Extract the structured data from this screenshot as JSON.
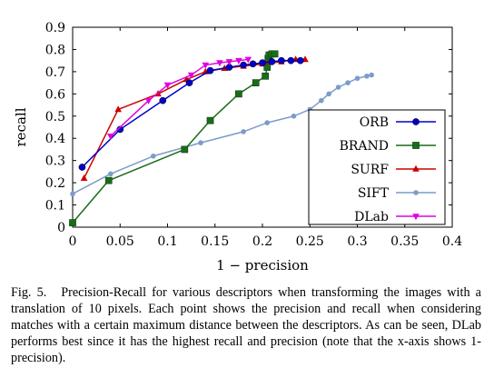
{
  "chart_data": {
    "type": "line",
    "xlabel": "1 − precision",
    "ylabel": "recall",
    "xlim": [
      0,
      0.4
    ],
    "ylim": [
      0,
      0.9
    ],
    "x_ticks": [
      "0",
      "0.05",
      "0.1",
      "0.15",
      "0.2",
      "0.25",
      "0.3",
      "0.35",
      "0.4"
    ],
    "y_ticks": [
      "0",
      "0.1",
      "0.2",
      "0.3",
      "0.4",
      "0.5",
      "0.6",
      "0.7",
      "0.8",
      "0.9"
    ],
    "grid": false,
    "legend_position": "bottom-right",
    "series": [
      {
        "name": "ORB",
        "color": "#0000cc",
        "marker": "circle",
        "points": [
          [
            0.01,
            0.27
          ],
          [
            0.05,
            0.44
          ],
          [
            0.095,
            0.57
          ],
          [
            0.123,
            0.65
          ],
          [
            0.145,
            0.705
          ],
          [
            0.165,
            0.72
          ],
          [
            0.18,
            0.73
          ],
          [
            0.19,
            0.735
          ],
          [
            0.2,
            0.74
          ],
          [
            0.21,
            0.745
          ],
          [
            0.22,
            0.75
          ],
          [
            0.23,
            0.75
          ],
          [
            0.24,
            0.75
          ]
        ]
      },
      {
        "name": "BRAND",
        "color": "#1a6b1a",
        "marker": "square",
        "points": [
          [
            0.0,
            0.02
          ],
          [
            0.038,
            0.21
          ],
          [
            0.118,
            0.35
          ],
          [
            0.145,
            0.48
          ],
          [
            0.175,
            0.6
          ],
          [
            0.193,
            0.65
          ],
          [
            0.203,
            0.68
          ],
          [
            0.205,
            0.72
          ],
          [
            0.206,
            0.76
          ],
          [
            0.207,
            0.775
          ],
          [
            0.21,
            0.78
          ],
          [
            0.213,
            0.78
          ]
        ]
      },
      {
        "name": "SURF",
        "color": "#cc0000",
        "marker": "triangle",
        "points": [
          [
            0.012,
            0.22
          ],
          [
            0.048,
            0.53
          ],
          [
            0.09,
            0.6
          ],
          [
            0.12,
            0.665
          ],
          [
            0.14,
            0.7
          ],
          [
            0.16,
            0.715
          ],
          [
            0.18,
            0.725
          ],
          [
            0.2,
            0.735
          ],
          [
            0.22,
            0.745
          ],
          [
            0.235,
            0.755
          ],
          [
            0.245,
            0.755
          ]
        ]
      },
      {
        "name": "SIFT",
        "color": "#7c9cc9",
        "marker": "circle-small",
        "points": [
          [
            0.0,
            0.15
          ],
          [
            0.04,
            0.24
          ],
          [
            0.085,
            0.32
          ],
          [
            0.135,
            0.38
          ],
          [
            0.18,
            0.43
          ],
          [
            0.205,
            0.47
          ],
          [
            0.233,
            0.5
          ],
          [
            0.25,
            0.53
          ],
          [
            0.262,
            0.57
          ],
          [
            0.27,
            0.6
          ],
          [
            0.28,
            0.63
          ],
          [
            0.29,
            0.65
          ],
          [
            0.3,
            0.67
          ],
          [
            0.31,
            0.68
          ],
          [
            0.315,
            0.685
          ]
        ]
      },
      {
        "name": "DLab",
        "color": "#e000e0",
        "marker": "triangle-down",
        "points": [
          [
            0.04,
            0.41
          ],
          [
            0.08,
            0.57
          ],
          [
            0.1,
            0.64
          ],
          [
            0.125,
            0.685
          ],
          [
            0.14,
            0.73
          ],
          [
            0.155,
            0.74
          ],
          [
            0.165,
            0.745
          ],
          [
            0.175,
            0.75
          ],
          [
            0.185,
            0.755
          ]
        ]
      }
    ]
  },
  "caption": {
    "label": "Fig. 5.",
    "text": "Precision-Recall for various descriptors when transforming the images with a translation of 10 pixels. Each point shows the precision and recall when considering matches with a certain maximum distance between the descriptors. As can be seen, DLab performs best since it has the highest recall and precision (note that the x-axis shows 1-precision)."
  }
}
